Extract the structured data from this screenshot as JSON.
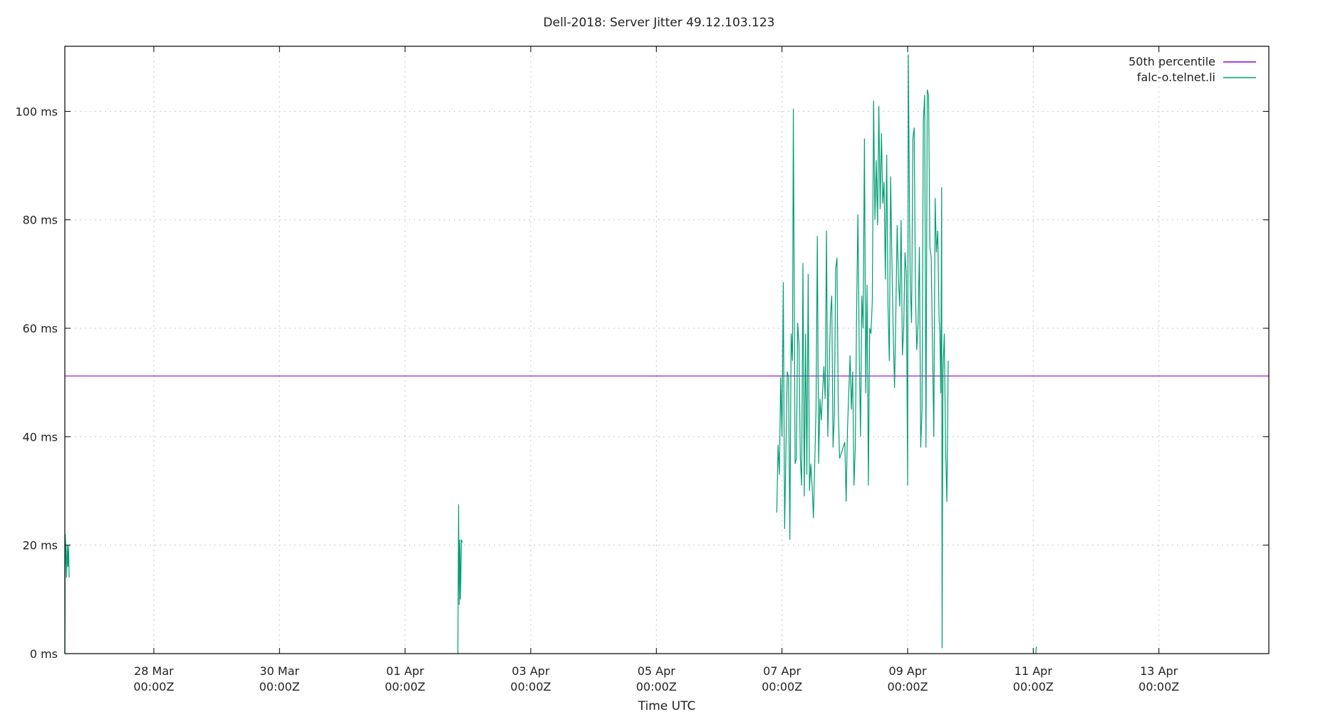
{
  "chart_data": {
    "type": "line",
    "title": "Dell-2018: Server Jitter 49.12.103.123",
    "xlabel": "Time UTC",
    "ylabel": "",
    "x_unit": "day",
    "x_range_day": [
      "2018-03-26T14:00Z",
      "2018-04-14T18:00Z"
    ],
    "ylim": [
      0,
      112
    ],
    "y_ticks": [
      0,
      20,
      40,
      60,
      80,
      100
    ],
    "y_tick_labels": [
      "0 ms",
      "20 ms",
      "40 ms",
      "60 ms",
      "80 ms",
      "100 ms"
    ],
    "x_ticks": [
      "2018-03-28T00:00Z",
      "2018-03-30T00:00Z",
      "2018-04-01T00:00Z",
      "2018-04-03T00:00Z",
      "2018-04-05T00:00Z",
      "2018-04-07T00:00Z",
      "2018-04-09T00:00Z",
      "2018-04-11T00:00Z",
      "2018-04-13T00:00Z"
    ],
    "x_tick_labels": [
      {
        "line1": "28 Mar",
        "line2": "00:00Z"
      },
      {
        "line1": "30 Mar",
        "line2": "00:00Z"
      },
      {
        "line1": "01 Apr",
        "line2": "00:00Z"
      },
      {
        "line1": "03 Apr",
        "line2": "00:00Z"
      },
      {
        "line1": "05 Apr",
        "line2": "00:00Z"
      },
      {
        "line1": "07 Apr",
        "line2": "00:00Z"
      },
      {
        "line1": "09 Apr",
        "line2": "00:00Z"
      },
      {
        "line1": "11 Apr",
        "line2": "00:00Z"
      },
      {
        "line1": "13 Apr",
        "line2": "00:00Z"
      }
    ],
    "grid": true,
    "legend_position": "top-right",
    "series": [
      {
        "name": "50th percentile",
        "color": "#9400d3",
        "kind": "hline",
        "value": 51.2
      },
      {
        "name": "falc-o.telnet.li",
        "color": "#009e73",
        "kind": "line",
        "segments": [
          [
            [
              "2018-03-26T14:00Z",
              0
            ],
            [
              "2018-03-26T14:10Z",
              22
            ],
            [
              "2018-03-26T14:25Z",
              19
            ],
            [
              "2018-03-26T14:40Z",
              14
            ],
            [
              "2018-03-26T14:55Z",
              20
            ],
            [
              "2018-03-26T15:10Z",
              16
            ],
            [
              "2018-03-26T15:25Z",
              20
            ],
            [
              "2018-03-26T15:40Z",
              14
            ]
          ],
          [
            [
              "2018-04-01T20:10Z",
              0
            ],
            [
              "2018-04-01T20:25Z",
              27.5
            ],
            [
              "2018-04-01T20:40Z",
              9
            ],
            [
              "2018-04-01T20:55Z",
              21
            ],
            [
              "2018-04-01T21:10Z",
              10
            ],
            [
              "2018-04-01T21:30Z",
              21
            ],
            [
              "2018-04-01T21:50Z",
              20.5
            ]
          ],
          [
            [
              "2018-04-06T22:00Z",
              26
            ],
            [
              "2018-04-06T22:30Z",
              38.5
            ],
            [
              "2018-04-06T23:00Z",
              33
            ],
            [
              "2018-04-06T23:30Z",
              51
            ],
            [
              "2018-04-07T00:00Z",
              40
            ],
            [
              "2018-04-07T00:30Z",
              68.5
            ],
            [
              "2018-04-07T01:00Z",
              23
            ],
            [
              "2018-04-07T02:00Z",
              52
            ],
            [
              "2018-04-07T02:30Z",
              51
            ],
            [
              "2018-04-07T03:00Z",
              21
            ],
            [
              "2018-04-07T03:30Z",
              59
            ],
            [
              "2018-04-07T04:00Z",
              54
            ],
            [
              "2018-04-07T04:20Z",
              100.5
            ],
            [
              "2018-04-07T05:00Z",
              35
            ],
            [
              "2018-04-07T05:30Z",
              36
            ],
            [
              "2018-04-07T06:00Z",
              61
            ],
            [
              "2018-04-07T06:30Z",
              57
            ],
            [
              "2018-04-07T07:00Z",
              36
            ],
            [
              "2018-04-07T07:30Z",
              31
            ],
            [
              "2018-04-07T08:00Z",
              72
            ],
            [
              "2018-04-07T08:30Z",
              29
            ],
            [
              "2018-04-07T09:00Z",
              59
            ],
            [
              "2018-04-07T09:30Z",
              33
            ],
            [
              "2018-04-07T10:00Z",
              70
            ],
            [
              "2018-04-07T10:30Z",
              30
            ],
            [
              "2018-04-07T11:00Z",
              35
            ],
            [
              "2018-04-07T11:30Z",
              31
            ],
            [
              "2018-04-07T12:00Z",
              25
            ],
            [
              "2018-04-07T13:00Z",
              45
            ],
            [
              "2018-04-07T13:30Z",
              77
            ],
            [
              "2018-04-07T14:00Z",
              35
            ],
            [
              "2018-04-07T14:30Z",
              47
            ],
            [
              "2018-04-07T15:00Z",
              43
            ],
            [
              "2018-04-07T16:00Z",
              53
            ],
            [
              "2018-04-07T16:30Z",
              47
            ],
            [
              "2018-04-07T17:00Z",
              78
            ],
            [
              "2018-04-07T17:30Z",
              40
            ],
            [
              "2018-04-07T18:30Z",
              62.5
            ],
            [
              "2018-04-07T19:00Z",
              66
            ],
            [
              "2018-04-07T19:30Z",
              38
            ],
            [
              "2018-04-07T20:00Z",
              44
            ],
            [
              "2018-04-07T20:30Z",
              71
            ],
            [
              "2018-04-07T21:00Z",
              73
            ],
            [
              "2018-04-07T21:30Z",
              45
            ],
            [
              "2018-04-07T22:00Z",
              36
            ],
            [
              "2018-04-08T00:00Z",
              39
            ],
            [
              "2018-04-08T00:30Z",
              28
            ],
            [
              "2018-04-08T01:00Z",
              41
            ],
            [
              "2018-04-08T02:00Z",
              55
            ],
            [
              "2018-04-08T02:30Z",
              45
            ],
            [
              "2018-04-08T03:00Z",
              52
            ],
            [
              "2018-04-08T03:30Z",
              31
            ],
            [
              "2018-04-08T04:00Z",
              38
            ],
            [
              "2018-04-08T04:30Z",
              63
            ],
            [
              "2018-04-08T05:00Z",
              81
            ],
            [
              "2018-04-08T05:30Z",
              56
            ],
            [
              "2018-04-08T06:00Z",
              40
            ],
            [
              "2018-04-08T06:30Z",
              66
            ],
            [
              "2018-04-08T07:00Z",
              60
            ],
            [
              "2018-04-08T07:30Z",
              95
            ],
            [
              "2018-04-08T08:00Z",
              48
            ],
            [
              "2018-04-08T08:30Z",
              68
            ],
            [
              "2018-04-08T09:00Z",
              31
            ],
            [
              "2018-04-08T09:30Z",
              60
            ],
            [
              "2018-04-08T10:00Z",
              59
            ],
            [
              "2018-04-08T10:30Z",
              65
            ],
            [
              "2018-04-08T11:00Z",
              102
            ],
            [
              "2018-04-08T11:30Z",
              80
            ],
            [
              "2018-04-08T12:00Z",
              91
            ],
            [
              "2018-04-08T12:30Z",
              79
            ],
            [
              "2018-04-08T13:00Z",
              101
            ],
            [
              "2018-04-08T13:30Z",
              82
            ],
            [
              "2018-04-08T14:00Z",
              96
            ],
            [
              "2018-04-08T14:30Z",
              83
            ],
            [
              "2018-04-08T15:00Z",
              87
            ],
            [
              "2018-04-08T15:30Z",
              69
            ],
            [
              "2018-04-08T16:00Z",
              92
            ],
            [
              "2018-04-08T16:30Z",
              64
            ],
            [
              "2018-04-08T17:00Z",
              54
            ],
            [
              "2018-04-08T17:30Z",
              88
            ],
            [
              "2018-04-08T18:00Z",
              72
            ],
            [
              "2018-04-08T18:30Z",
              59
            ],
            [
              "2018-04-08T19:00Z",
              49
            ],
            [
              "2018-04-08T19:30Z",
              63
            ],
            [
              "2018-04-08T20:00Z",
              79
            ],
            [
              "2018-04-08T20:30Z",
              69
            ],
            [
              "2018-04-08T21:00Z",
              64
            ],
            [
              "2018-04-08T21:30Z",
              80
            ],
            [
              "2018-04-08T22:00Z",
              55
            ],
            [
              "2018-04-08T22:30Z",
              60
            ],
            [
              "2018-04-08T23:00Z",
              74
            ],
            [
              "2018-04-08T23:30Z",
              70
            ],
            [
              "2018-04-09T00:00Z",
              31
            ],
            [
              "2018-04-09T00:15Z",
              110.5
            ],
            [
              "2018-04-09T00:45Z",
              80
            ],
            [
              "2018-04-09T01:00Z",
              68
            ],
            [
              "2018-04-09T01:30Z",
              61
            ],
            [
              "2018-04-09T02:00Z",
              95
            ],
            [
              "2018-04-09T02:30Z",
              97
            ],
            [
              "2018-04-09T03:00Z",
              66
            ],
            [
              "2018-04-09T03:30Z",
              56
            ],
            [
              "2018-04-09T04:00Z",
              61
            ],
            [
              "2018-04-09T04:30Z",
              75
            ],
            [
              "2018-04-09T05:00Z",
              38
            ],
            [
              "2018-04-09T05:30Z",
              45
            ],
            [
              "2018-04-09T06:00Z",
              98
            ],
            [
              "2018-04-09T06:30Z",
              103
            ],
            [
              "2018-04-09T07:00Z",
              38
            ],
            [
              "2018-04-09T07:30Z",
              104
            ],
            [
              "2018-04-09T08:00Z",
              103
            ],
            [
              "2018-04-09T08:30Z",
              75
            ],
            [
              "2018-04-09T09:00Z",
              73
            ],
            [
              "2018-04-09T10:00Z",
              40
            ],
            [
              "2018-04-09T10:30Z",
              84
            ],
            [
              "2018-04-09T11:00Z",
              74
            ],
            [
              "2018-04-09T11:30Z",
              78
            ],
            [
              "2018-04-09T12:00Z",
              62
            ],
            [
              "2018-04-09T12:20Z",
              59
            ],
            [
              "2018-04-09T12:40Z",
              48
            ],
            [
              "2018-04-09T13:00Z",
              86
            ],
            [
              "2018-04-09T13:10Z",
              1
            ],
            [
              "2018-04-09T13:30Z",
              52
            ],
            [
              "2018-04-09T14:00Z",
              59
            ],
            [
              "2018-04-09T14:30Z",
              38
            ],
            [
              "2018-04-09T15:00Z",
              28
            ],
            [
              "2018-04-09T15:30Z",
              54
            ]
          ],
          [
            [
              "2018-04-11T01:00Z",
              0
            ],
            [
              "2018-04-11T01:10Z",
              1.3
            ]
          ]
        ]
      }
    ]
  }
}
